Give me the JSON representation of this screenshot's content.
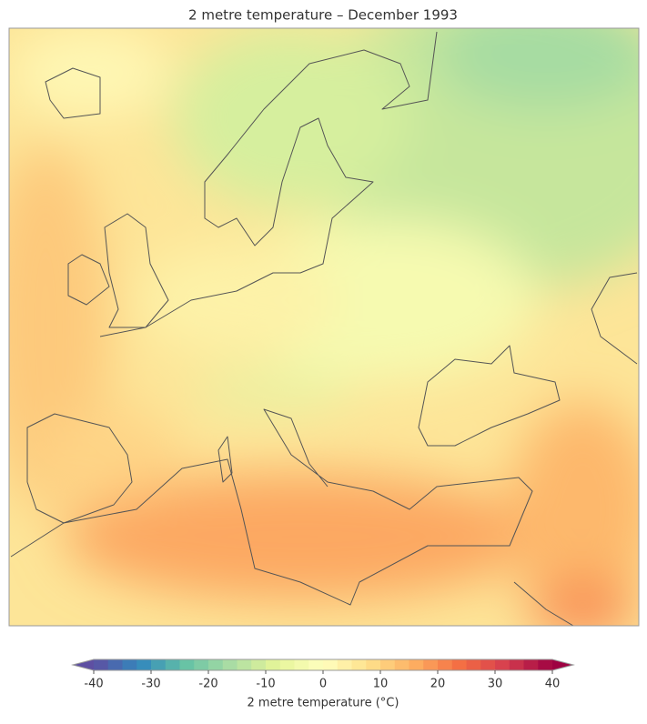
{
  "chart_data": {
    "type": "map",
    "title": "2 metre temperature – December 1993",
    "colorbar": {
      "label": "2 metre temperature (°C)",
      "lim": [
        -40,
        40
      ],
      "ticks": [
        -40,
        -30,
        -20,
        -10,
        0,
        10,
        20,
        30,
        40
      ],
      "extend": "both"
    }
  }
}
